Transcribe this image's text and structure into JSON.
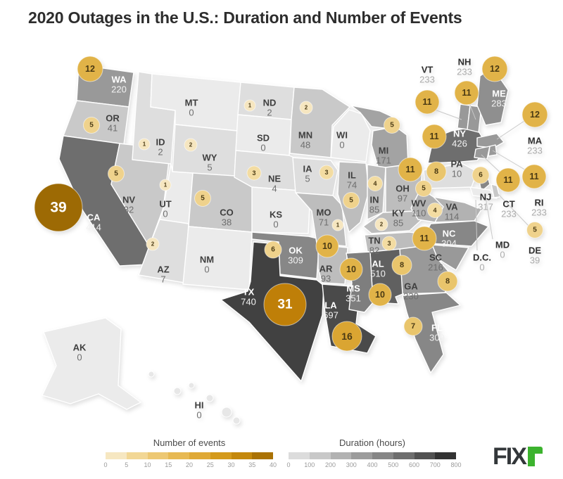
{
  "title": "2020 Outages in the U.S.: Duration and Number of Events",
  "logo": {
    "main": "FIX",
    "accent": "r",
    "accent_color": "#3cb32e",
    "main_color": "#33373a"
  },
  "legends": {
    "events": {
      "label": "Number of events",
      "ticks": [
        "0",
        "5",
        "10",
        "15",
        "20",
        "25",
        "30",
        "35",
        "40"
      ],
      "colors": [
        "#F6E7C1",
        "#F2D795",
        "#EDC873",
        "#E7B953",
        "#DFA936",
        "#D49A1B",
        "#C4880C",
        "#AA7204"
      ]
    },
    "duration": {
      "label": "Duration (hours)",
      "ticks": [
        "0",
        "100",
        "200",
        "300",
        "400",
        "500",
        "600",
        "700",
        "800"
      ],
      "colors": [
        "#DCDCDC",
        "#C8C8C8",
        "#B2B2B2",
        "#9C9C9C",
        "#868686",
        "#6E6E6E",
        "#525252",
        "#333333"
      ]
    }
  },
  "chart_data": {
    "type": "heatmap",
    "subtype": "us-choropleth-map-with-bubbles",
    "title": "2020 Outages in the U.S.: Duration and Number of Events",
    "encoding": {
      "state_shade": "Outage duration in hours, 0-800, light gray to near-black",
      "bubble_color_size": "Number of outage events, 0-40, light gold to dark amber"
    },
    "states": [
      {
        "abbr": "WA",
        "duration_hours": 220,
        "events": 12
      },
      {
        "abbr": "OR",
        "duration_hours": 41,
        "events": 5
      },
      {
        "abbr": "CA",
        "duration_hours": 414,
        "events": 39
      },
      {
        "abbr": "NV",
        "duration_hours": 32,
        "events": 5
      },
      {
        "abbr": "ID",
        "duration_hours": 2,
        "events": 1
      },
      {
        "abbr": "MT",
        "duration_hours": 0,
        "events": null
      },
      {
        "abbr": "WY",
        "duration_hours": 5,
        "events": 2
      },
      {
        "abbr": "UT",
        "duration_hours": 0,
        "events": 1
      },
      {
        "abbr": "CO",
        "duration_hours": 38,
        "events": 5
      },
      {
        "abbr": "AZ",
        "duration_hours": 7,
        "events": 2
      },
      {
        "abbr": "NM",
        "duration_hours": 0,
        "events": null
      },
      {
        "abbr": "ND",
        "duration_hours": 2,
        "events": 1
      },
      {
        "abbr": "SD",
        "duration_hours": 0,
        "events": null
      },
      {
        "abbr": "NE",
        "duration_hours": 4,
        "events": 3
      },
      {
        "abbr": "KS",
        "duration_hours": 0,
        "events": null
      },
      {
        "abbr": "OK",
        "duration_hours": 309,
        "events": 6
      },
      {
        "abbr": "TX",
        "duration_hours": 740,
        "events": 31
      },
      {
        "abbr": "MN",
        "duration_hours": 48,
        "events": 2
      },
      {
        "abbr": "IA",
        "duration_hours": 5,
        "events": 3
      },
      {
        "abbr": "MO",
        "duration_hours": 71,
        "events": 1
      },
      {
        "abbr": "AR",
        "duration_hours": 93,
        "events": 10
      },
      {
        "abbr": "LA",
        "duration_hours": 697,
        "events": 16
      },
      {
        "abbr": "WI",
        "duration_hours": 0,
        "events": null
      },
      {
        "abbr": "IL",
        "duration_hours": 74,
        "events": 5
      },
      {
        "abbr": "MI",
        "duration_hours": 171,
        "events": 5
      },
      {
        "abbr": "IN",
        "duration_hours": 85,
        "events": 4
      },
      {
        "abbr": "OH",
        "duration_hours": 97,
        "events": 11
      },
      {
        "abbr": "KY",
        "duration_hours": 85,
        "events": 2
      },
      {
        "abbr": "TN",
        "duration_hours": 82,
        "events": 3
      },
      {
        "abbr": "VA",
        "duration_hours": 114,
        "events": 4
      },
      {
        "abbr": "WV",
        "duration_hours": 110,
        "events": 5
      },
      {
        "abbr": "NC",
        "duration_hours": 304,
        "events": 11
      },
      {
        "abbr": "SC",
        "duration_hours": 216,
        "events": 8
      },
      {
        "abbr": "GA",
        "duration_hours": 230,
        "events": 8
      },
      {
        "abbr": "AL",
        "duration_hours": 510,
        "events": 10
      },
      {
        "abbr": "MS",
        "duration_hours": 351,
        "events": 10
      },
      {
        "abbr": "FL",
        "duration_hours": 309,
        "events": 7
      },
      {
        "abbr": "NY",
        "duration_hours": 426,
        "events": 11
      },
      {
        "abbr": "PA",
        "duration_hours": 10,
        "events": 8
      },
      {
        "abbr": "NJ",
        "duration_hours": 317,
        "events": 6
      },
      {
        "abbr": "MD",
        "duration_hours": 0,
        "events": null
      },
      {
        "abbr": "DE",
        "duration_hours": 39,
        "events": 5
      },
      {
        "abbr": "D.C.",
        "duration_hours": 0,
        "events": null
      },
      {
        "abbr": "VT",
        "duration_hours": 233,
        "events": 11
      },
      {
        "abbr": "NH",
        "duration_hours": 233,
        "events": 11
      },
      {
        "abbr": "ME",
        "duration_hours": 283,
        "events": 12
      },
      {
        "abbr": "MA",
        "duration_hours": 233,
        "events": 12
      },
      {
        "abbr": "CT",
        "duration_hours": 233,
        "events": 11
      },
      {
        "abbr": "RI",
        "duration_hours": 233,
        "events": 11
      },
      {
        "abbr": "AK",
        "duration_hours": 0,
        "events": null
      },
      {
        "abbr": "HI",
        "duration_hours": 0,
        "events": null
      }
    ]
  }
}
